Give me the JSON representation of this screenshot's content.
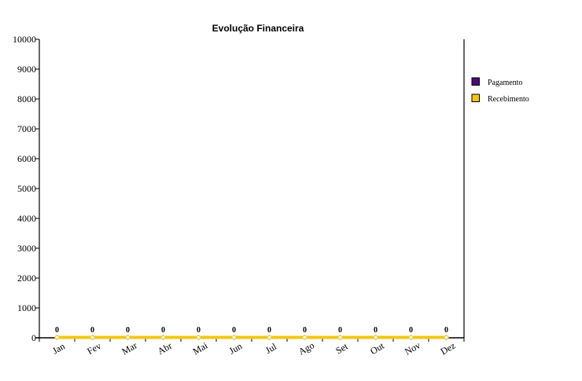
{
  "chart_data": {
    "type": "line",
    "title": "Evolução Financeira",
    "xlabel": "",
    "ylabel": "",
    "categories": [
      "Jan",
      "Fev",
      "Mar",
      "Abr",
      "Mai",
      "Jun",
      "Jul",
      "Ago",
      "Set",
      "Out",
      "Nov",
      "Dez"
    ],
    "ylim": [
      0,
      10000
    ],
    "yticks": [
      0,
      1000,
      2000,
      3000,
      4000,
      5000,
      6000,
      7000,
      8000,
      9000,
      10000
    ],
    "series": [
      {
        "name": "Pagamento",
        "color": "#4b0c7a",
        "values": [
          0,
          0,
          0,
          0,
          0,
          0,
          0,
          0,
          0,
          0,
          0,
          0
        ]
      },
      {
        "name": "Recebimento",
        "color": "#f3c615",
        "values": [
          0,
          0,
          0,
          0,
          0,
          0,
          0,
          0,
          0,
          0,
          0,
          0
        ]
      }
    ],
    "data_labels": [
      "0",
      "0",
      "0",
      "0",
      "0",
      "0",
      "0",
      "0",
      "0",
      "0",
      "0",
      "0"
    ],
    "grid": false,
    "legend_position": "right"
  }
}
